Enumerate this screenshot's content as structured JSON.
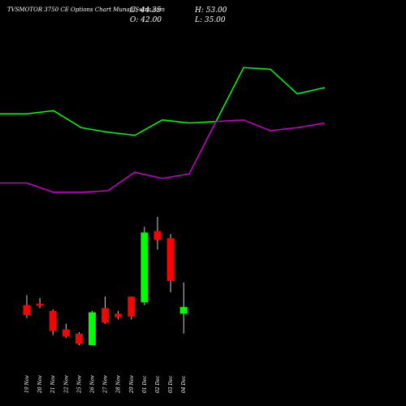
{
  "header": {
    "title": "TVSMOTOR 3750  CE Options  Chart MunafaSutra.com",
    "close": "C: 44.35",
    "high": "H: 53.00",
    "open": "O: 42.00",
    "low": "L: 35.00"
  },
  "chart_data": {
    "type": "candlestick",
    "title": "TVSMOTOR 3750  CE Options  Chart MunafaSutra.com",
    "categories": [
      "19 Nov",
      "20 Nov",
      "21 Nov",
      "22 Nov",
      "25 Nov",
      "26 Nov",
      "27 Nov",
      "28 Nov",
      "29 Nov",
      "01 Dec",
      "02 Dec",
      "03 Dec",
      "04 Dec"
    ],
    "candles": [
      {
        "date": "19 Nov",
        "open": 45.0,
        "high": 48.5,
        "low": 40.5,
        "close": 41.5
      },
      {
        "date": "20 Nov",
        "open": 45.5,
        "high": 47.5,
        "low": 44.0,
        "close": 44.8
      },
      {
        "date": "21 Nov",
        "open": 43.0,
        "high": 43.5,
        "low": 34.5,
        "close": 36.0
      },
      {
        "date": "22 Nov",
        "open": 36.5,
        "high": 38.5,
        "low": 33.5,
        "close": 34.0
      },
      {
        "date": "25 Nov",
        "open": 35.0,
        "high": 35.5,
        "low": 31.0,
        "close": 31.5
      },
      {
        "date": "26 Nov",
        "open": 31.0,
        "high": 43.0,
        "low": 31.0,
        "close": 42.5
      },
      {
        "date": "27 Nov",
        "open": 44.0,
        "high": 48.0,
        "low": 38.5,
        "close": 39.0
      },
      {
        "date": "28 Nov",
        "open": 42.0,
        "high": 43.0,
        "low": 40.0,
        "close": 40.8
      },
      {
        "date": "29 Nov",
        "open": 48.0,
        "high": 48.0,
        "low": 40.0,
        "close": 41.0
      },
      {
        "date": "01 Dec",
        "open": 46.0,
        "high": 72.5,
        "low": 45.0,
        "close": 70.5
      },
      {
        "date": "02 Dec",
        "open": 71.0,
        "high": 76.0,
        "low": 64.5,
        "close": 68.0
      },
      {
        "date": "03 Dec",
        "open": 68.5,
        "high": 70.0,
        "low": 49.5,
        "close": 53.5
      },
      {
        "date": "04 Dec",
        "open": 42.0,
        "high": 53.0,
        "low": 35.0,
        "close": 44.35
      }
    ],
    "series": [
      {
        "name": "",
        "color": "#00ff00",
        "values": [
          1680,
          1680,
          1700,
          1590,
          1560,
          1540,
          1640,
          1620,
          1630,
          1980,
          1970,
          1810,
          1850
        ]
      },
      {
        "name": "",
        "color": "#cc00cc",
        "values": [
          1230,
          1230,
          1170,
          1170,
          1180,
          1300,
          1260,
          1290,
          1630,
          1640,
          1570,
          1590,
          1620
        ]
      },
      {
        "name": "",
        "color": "#00ff00",
        "values": [
          null,
          null,
          null,
          null,
          null,
          null,
          null,
          null,
          null,
          null,
          null,
          null,
          null
        ]
      }
    ],
    "colors": {
      "up": "#00ff00",
      "down": "#ff0000",
      "wick": "#ffffff",
      "background": "#000000"
    }
  }
}
